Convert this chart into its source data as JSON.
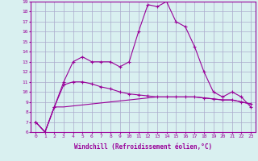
{
  "xlabel": "Windchill (Refroidissement éolien,°C)",
  "x": [
    0,
    1,
    2,
    3,
    4,
    5,
    6,
    7,
    8,
    9,
    10,
    11,
    12,
    13,
    14,
    15,
    16,
    17,
    18,
    19,
    20,
    21,
    22,
    23
  ],
  "line1": [
    7.0,
    6.0,
    8.5,
    11.0,
    13.0,
    13.5,
    13.0,
    13.0,
    13.0,
    12.5,
    13.0,
    16.0,
    18.7,
    18.5,
    19.0,
    17.0,
    16.5,
    14.5,
    12.0,
    10.0,
    9.5,
    10.0,
    9.5,
    8.5
  ],
  "line2": [
    7.0,
    6.0,
    8.5,
    10.7,
    11.0,
    11.0,
    10.8,
    10.5,
    10.3,
    10.0,
    9.8,
    9.7,
    9.6,
    9.5,
    9.5,
    9.5,
    9.5,
    9.5,
    9.4,
    9.3,
    9.2,
    9.2,
    9.0,
    8.8
  ],
  "line3": [
    7.0,
    6.0,
    8.5,
    8.5,
    8.6,
    8.7,
    8.8,
    8.9,
    9.0,
    9.1,
    9.2,
    9.3,
    9.4,
    9.5,
    9.5,
    9.5,
    9.5,
    9.5,
    9.4,
    9.3,
    9.2,
    9.2,
    9.0,
    8.8
  ],
  "color": "#990099",
  "bg_color": "#d9f0f0",
  "grid_color": "#aaaacc",
  "ylim": [
    6,
    19
  ],
  "xlim": [
    -0.5,
    23.5
  ]
}
